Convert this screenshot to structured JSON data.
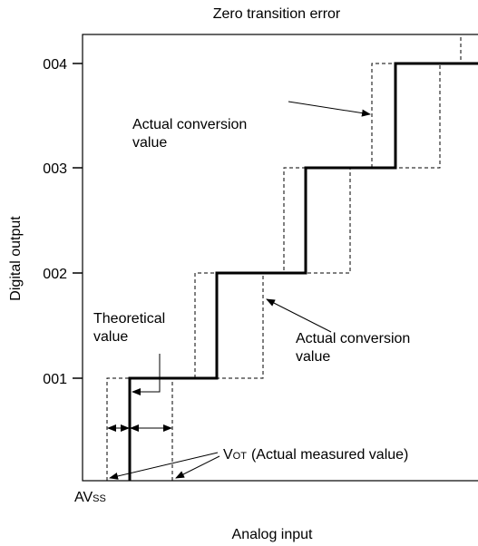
{
  "title": "Zero transition error",
  "y_axis_label": "Digital output",
  "x_axis_label": "Analog input",
  "y_levels": [
    "004",
    "003",
    "002",
    "001"
  ],
  "origin_label": {
    "main": "AV",
    "sub": "SS"
  },
  "annotations": {
    "actual_upper": [
      "Actual conversion",
      "value"
    ],
    "theoretical": [
      "Theoretical",
      "value"
    ],
    "actual_lower": [
      "Actual conversion",
      "value"
    ],
    "vot": {
      "main": "V",
      "sub": "OT",
      "rest": "(Actual measured value)"
    }
  }
}
